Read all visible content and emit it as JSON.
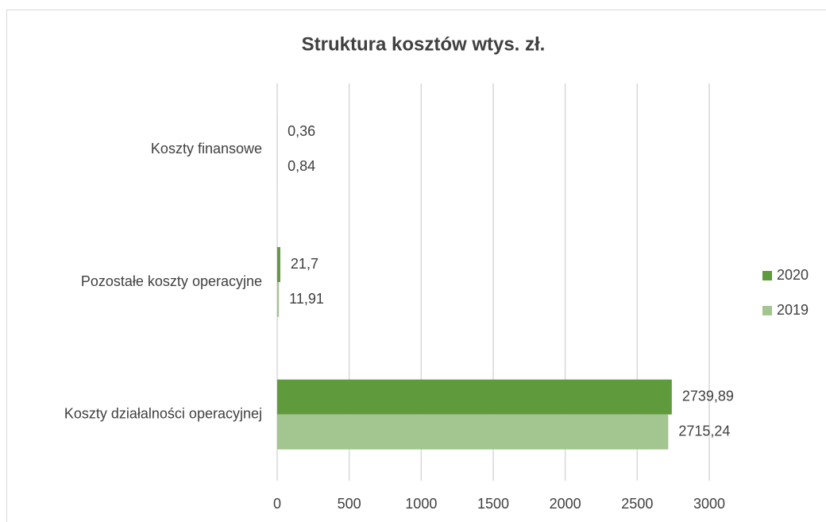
{
  "chart_data": {
    "type": "bar",
    "orientation": "horizontal",
    "title": "Struktura kosztów  wtys. zł.",
    "categories": [
      "Koszty finansowe",
      "Pozostałe koszty operacyjne",
      "Koszty działalności operacyjnej"
    ],
    "series": [
      {
        "name": "2020",
        "color": "#5f9a3c",
        "values": [
          0.36,
          21.7,
          2739.89
        ],
        "value_labels": [
          "0,36",
          "21,7",
          "2739,89"
        ]
      },
      {
        "name": "2019",
        "color": "#a3c58f",
        "values": [
          0.84,
          11.91,
          2715.24
        ],
        "value_labels": [
          "0,84",
          "11,91",
          "2715,24"
        ]
      }
    ],
    "xlim": [
      0,
      3000
    ],
    "xticks": [
      0,
      500,
      1000,
      1500,
      2000,
      2500,
      3000
    ],
    "grid": true,
    "legend": "right"
  }
}
